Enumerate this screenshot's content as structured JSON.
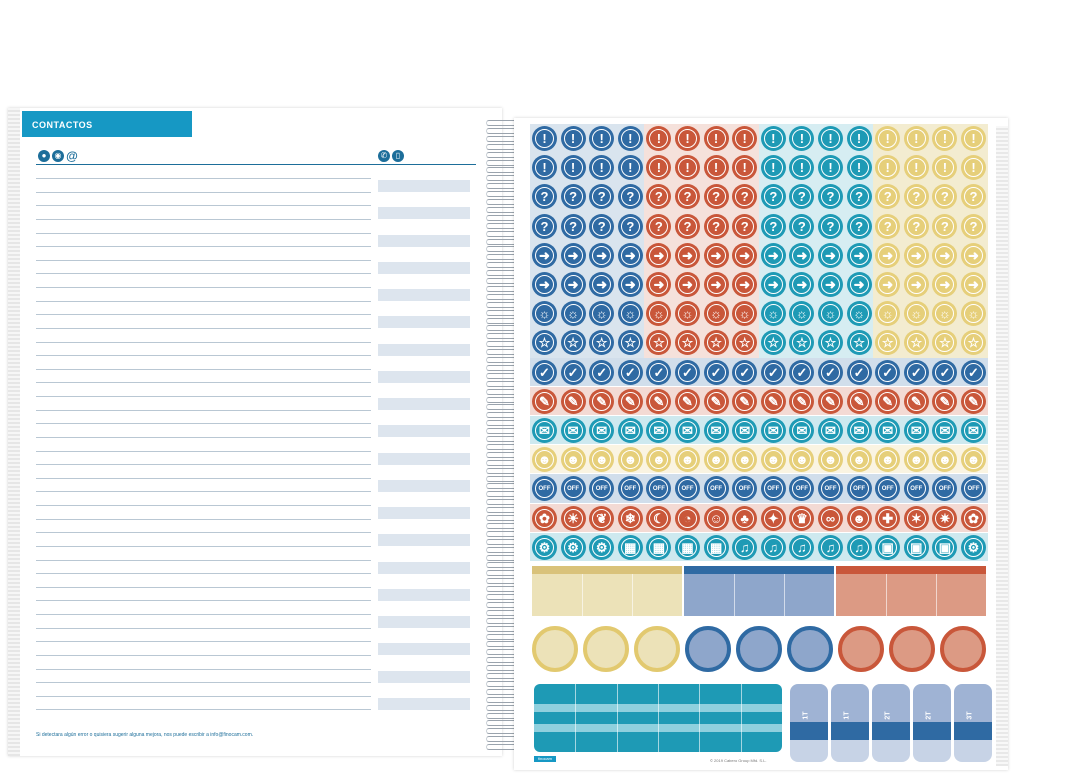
{
  "left_page": {
    "tab_title": "CONTACTOS",
    "header_icons_left": [
      "person-icon",
      "location-icon",
      "at-icon"
    ],
    "header_icons_right": [
      "phone-icon",
      "mobile-icon"
    ],
    "line_count": 40,
    "phone_box_count": 20,
    "footer": "Si detectara algún error o quisiera sugerir alguna mejora, nos puede escribir a info@finocam.com."
  },
  "right_page": {
    "copyright": "© 2019 Cabero Group Mfd. S.L.",
    "brand": "finocam",
    "colors": {
      "blue": "#2f6aa3",
      "orange": "#c9573a",
      "teal": "#1e9ab5",
      "yellow": "#e6cf7a",
      "yellow_light": "#ece2b8",
      "blue_light": "#8ea6cb",
      "orange_light": "#dc9a84",
      "teal_light": "#8fd0de"
    },
    "icon_rows": [
      {
        "symbol": "!",
        "icon": "exclamation-icon"
      },
      {
        "symbol": "!",
        "icon": "exclamation-icon"
      },
      {
        "symbol": "?",
        "icon": "question-icon"
      },
      {
        "symbol": "?",
        "icon": "question-icon"
      },
      {
        "symbol": "➜",
        "icon": "arrow-right-icon"
      },
      {
        "symbol": "➜",
        "icon": "arrow-right-icon"
      },
      {
        "symbol": "☼",
        "icon": "lightbulb-icon"
      },
      {
        "symbol": "☆",
        "icon": "star-icon"
      }
    ],
    "stripe_rows": [
      {
        "symbol": "✓",
        "icon": "check-icon",
        "color": "blue"
      },
      {
        "symbol": "✎",
        "icon": "note-icon",
        "color": "orange"
      },
      {
        "symbol": "✉",
        "icon": "envelope-icon",
        "color": "teal"
      },
      {
        "symbol": "☻",
        "icon": "people-icon",
        "color": "yellow"
      },
      {
        "symbol": "OFF",
        "icon": "off-label-icon",
        "color": "blue"
      },
      {
        "symbol": "✿",
        "icon": "seasonal-icon",
        "color": "orange"
      },
      {
        "symbol": "♫",
        "icon": "activity-icon",
        "color": "teal"
      }
    ],
    "seasonal_symbols": [
      "✿",
      "☀",
      "❦",
      "❄",
      "☾",
      "◔",
      "☺",
      "♣",
      "✦",
      "♛",
      "∞",
      "☻",
      "✚",
      "✶",
      "✷"
    ],
    "activity_symbols": [
      "⚙",
      "⚙",
      "⚙",
      "▦",
      "▦",
      "▦",
      "▦",
      "♫",
      "♫",
      "♫",
      "♫",
      "♫",
      "▣",
      "▣",
      "▣"
    ],
    "tab_labels": [
      "1T",
      "1T",
      "2T",
      "2T",
      "3T",
      "3T"
    ]
  }
}
